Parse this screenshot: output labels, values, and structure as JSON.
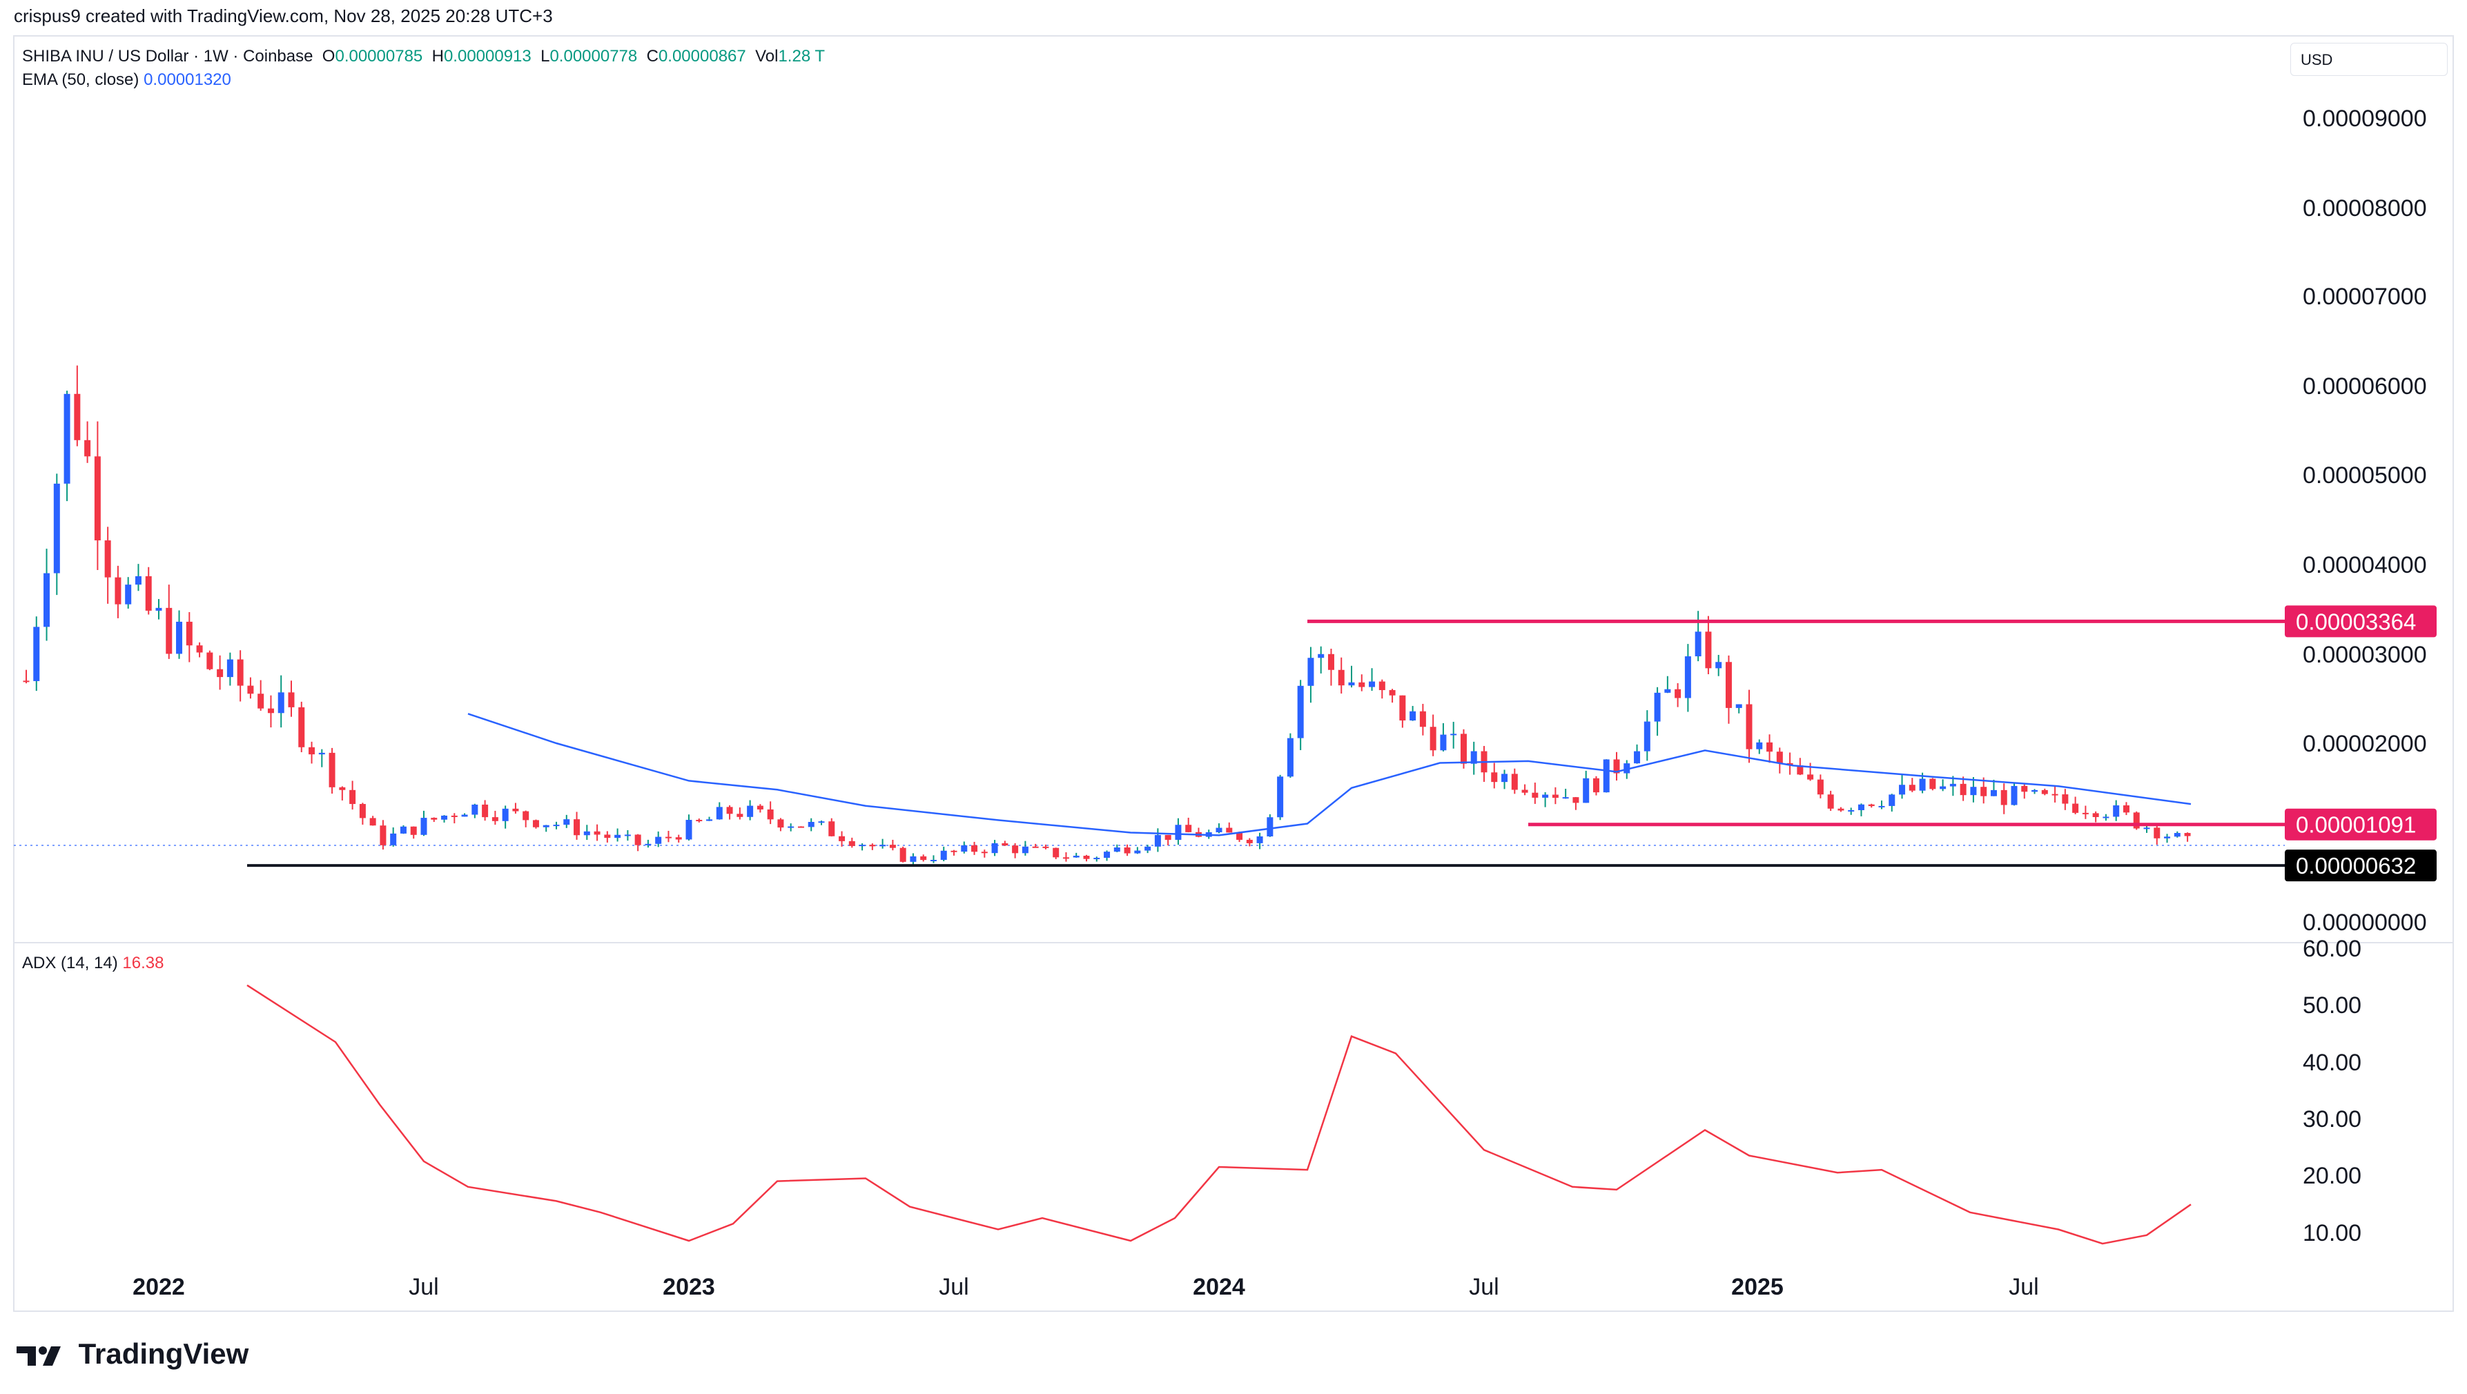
{
  "header": {
    "caption": "crispus9 created with TradingView.com, Nov 28, 2025 20:28 UTC+3"
  },
  "legend": {
    "symbol": "SHIBA INU / US Dollar · 1W · Coinbase",
    "o_label": "O",
    "o_value": "0.00000785",
    "h_label": "H",
    "h_value": "0.00000913",
    "l_label": "L",
    "l_value": "0.00000778",
    "c_label": "C",
    "c_value": "0.00000867",
    "vol_label": "Vol",
    "vol_value": "1.28 T",
    "ema_label": "EMA (50, close)",
    "ema_value": "0.00001320",
    "adx_label": "ADX (14, 14)",
    "adx_value": "16.38"
  },
  "currency_button": "USD",
  "logo_text": "TradingView",
  "colors": {
    "up": "#2962ff",
    "down": "#f23645",
    "ema": "#2962ff",
    "adx": "#f23645",
    "level": "#e91e63",
    "support": "#131722"
  },
  "chart_data": [
    {
      "type": "candlestick",
      "title": "SHIBA INU / US Dollar",
      "interval": "1W",
      "ylim": [
        0,
        9.5e-06
      ],
      "y_ticks": [
        "0.00009000",
        "0.00008000",
        "0.00007000",
        "0.00006000",
        "0.00005000",
        "0.00004000",
        "0.00003000",
        "0.00002000",
        "0.00000000"
      ],
      "x_ticks": [
        "2022",
        "Jul",
        "2023",
        "Jul",
        "2024",
        "Jul",
        "2025",
        "Jul"
      ],
      "horizontal_levels": [
        {
          "label": "0.00003364",
          "value": 3.364e-05,
          "from": "2024-03",
          "to": "2025-11"
        },
        {
          "label": "0.00001091",
          "value": 1.091e-05,
          "from": "2024-08",
          "to": "2025-11"
        },
        {
          "label": "0.00000632",
          "value": 6.32e-06,
          "from": "2022-03",
          "to": "2025-11"
        }
      ],
      "series": [
        {
          "name": "EMA (50, close)",
          "points": [
            {
              "x": "2022-08",
              "y": 2.33e-05
            },
            {
              "x": "2022-10",
              "y": 2e-05
            },
            {
              "x": "2022-12",
              "y": 1.72e-05
            },
            {
              "x": "2023-01",
              "y": 1.58e-05
            },
            {
              "x": "2023-03",
              "y": 1.48e-05
            },
            {
              "x": "2023-05",
              "y": 1.3e-05
            },
            {
              "x": "2023-08",
              "y": 1.14e-05
            },
            {
              "x": "2023-11",
              "y": 1e-05
            },
            {
              "x": "2024-01",
              "y": 9.7e-06
            },
            {
              "x": "2024-03",
              "y": 1.1e-05
            },
            {
              "x": "2024-04",
              "y": 1.5e-05
            },
            {
              "x": "2024-06",
              "y": 1.78e-05
            },
            {
              "x": "2024-08",
              "y": 1.8e-05
            },
            {
              "x": "2024-10",
              "y": 1.68e-05
            },
            {
              "x": "2024-12",
              "y": 1.92e-05
            },
            {
              "x": "2025-02",
              "y": 1.75e-05
            },
            {
              "x": "2025-05",
              "y": 1.63e-05
            },
            {
              "x": "2025-08",
              "y": 1.52e-05
            },
            {
              "x": "2025-11",
              "y": 1.32e-05
            }
          ]
        }
      ]
    },
    {
      "type": "line",
      "title": "ADX (14, 14)",
      "ylim": [
        0,
        60
      ],
      "y_ticks": [
        "60.00",
        "50.00",
        "40.00",
        "30.00",
        "20.00",
        "10.00"
      ],
      "series": [
        {
          "name": "ADX (14, 14)",
          "points": [
            {
              "x": "2022-03",
              "y": 55
            },
            {
              "x": "2022-05",
              "y": 45
            },
            {
              "x": "2022-06",
              "y": 34
            },
            {
              "x": "2022-07",
              "y": 24
            },
            {
              "x": "2022-08",
              "y": 19.5
            },
            {
              "x": "2022-10",
              "y": 17
            },
            {
              "x": "2022-11",
              "y": 15
            },
            {
              "x": "2023-01",
              "y": 10
            },
            {
              "x": "2023-02",
              "y": 13
            },
            {
              "x": "2023-03",
              "y": 20.5
            },
            {
              "x": "2023-05",
              "y": 21
            },
            {
              "x": "2023-06",
              "y": 16
            },
            {
              "x": "2023-08",
              "y": 12
            },
            {
              "x": "2023-09",
              "y": 14
            },
            {
              "x": "2023-11",
              "y": 10
            },
            {
              "x": "2023-12",
              "y": 14
            },
            {
              "x": "2024-01",
              "y": 23
            },
            {
              "x": "2024-03",
              "y": 22.5
            },
            {
              "x": "2024-04",
              "y": 46
            },
            {
              "x": "2024-05",
              "y": 43
            },
            {
              "x": "2024-07",
              "y": 26
            },
            {
              "x": "2024-09",
              "y": 19.5
            },
            {
              "x": "2024-10",
              "y": 19
            },
            {
              "x": "2024-12",
              "y": 29.5
            },
            {
              "x": "2025-01",
              "y": 25
            },
            {
              "x": "2025-03",
              "y": 22
            },
            {
              "x": "2025-04",
              "y": 22.5
            },
            {
              "x": "2025-06",
              "y": 15
            },
            {
              "x": "2025-08",
              "y": 12
            },
            {
              "x": "2025-09",
              "y": 9.5
            },
            {
              "x": "2025-10",
              "y": 11
            },
            {
              "x": "2025-11",
              "y": 16.4
            }
          ]
        }
      ]
    }
  ]
}
